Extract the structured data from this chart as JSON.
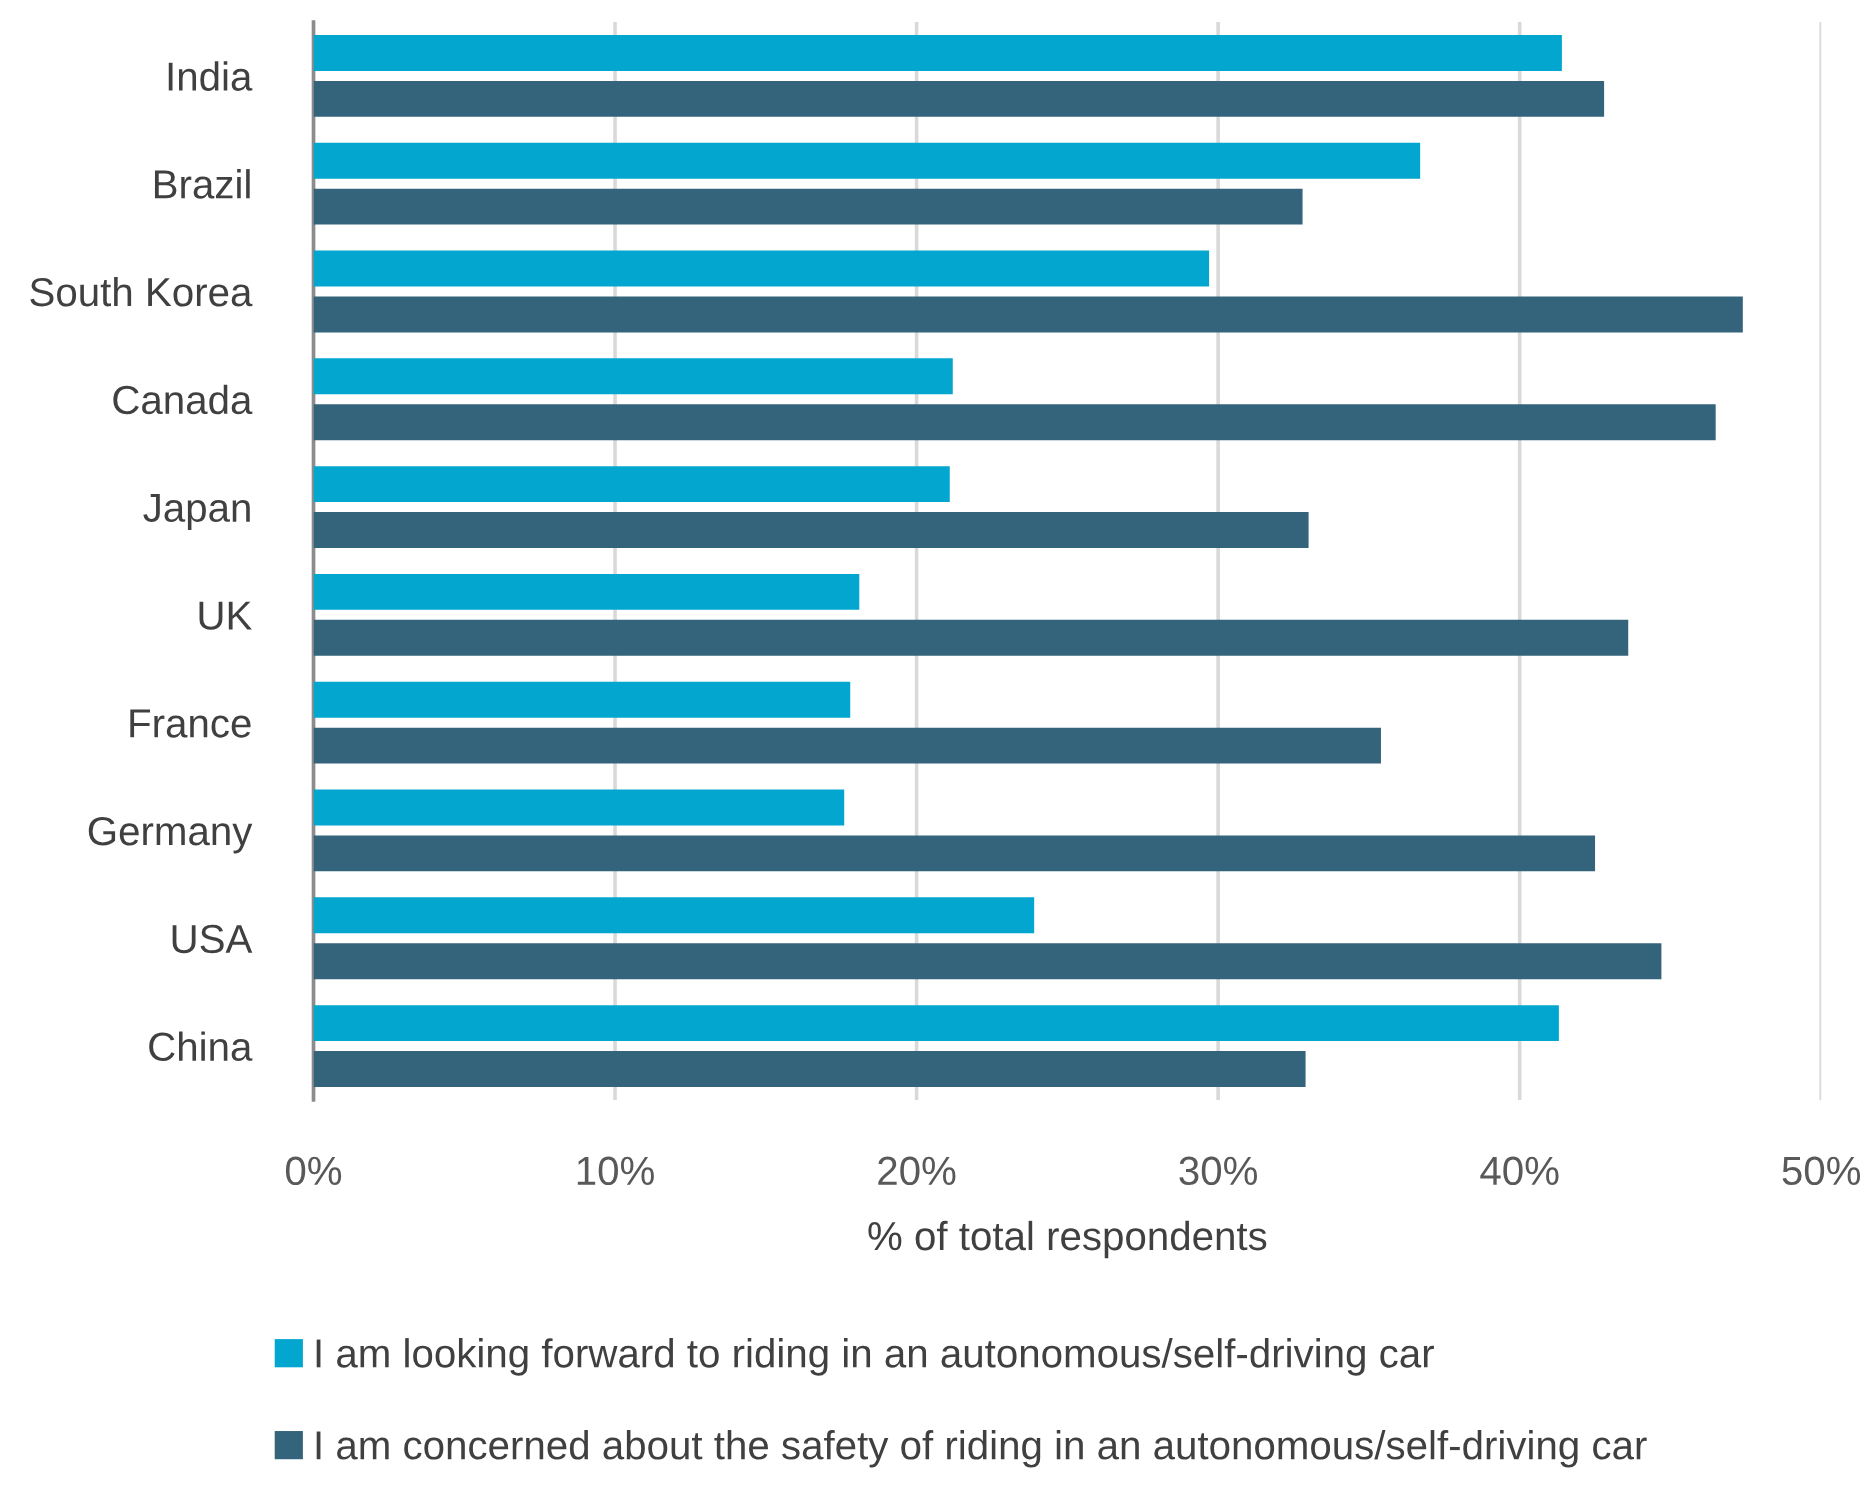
{
  "chart_data": {
    "type": "bar",
    "orientation": "horizontal",
    "categories": [
      "India",
      "Brazil",
      "South Korea",
      "Canada",
      "Japan",
      "UK",
      "France",
      "Germany",
      "USA",
      "China"
    ],
    "series": [
      {
        "name": "I am looking forward to riding in an autonomous/self-driving car",
        "color": "#02a6cf",
        "values": [
          41.4,
          36.7,
          29.7,
          21.2,
          21.1,
          18.1,
          17.8,
          17.6,
          23.9,
          41.3
        ]
      },
      {
        "name": "I am concerned about the safety of riding in an autonomous/self-driving car",
        "color": "#34637c",
        "values": [
          42.8,
          32.8,
          47.4,
          46.5,
          33.0,
          43.6,
          35.4,
          42.5,
          44.7,
          32.9
        ]
      }
    ],
    "xlabel": "% of total respondents",
    "xlim": [
      0,
      50
    ],
    "xticks": [
      {
        "value": 0,
        "label": "0%"
      },
      {
        "value": 10,
        "label": "10%"
      },
      {
        "value": 20,
        "label": "20%"
      },
      {
        "value": 30,
        "label": "30%"
      },
      {
        "value": 40,
        "label": "40%"
      },
      {
        "value": 50,
        "label": "50%"
      }
    ],
    "grid": "x",
    "legend": "bottom"
  }
}
